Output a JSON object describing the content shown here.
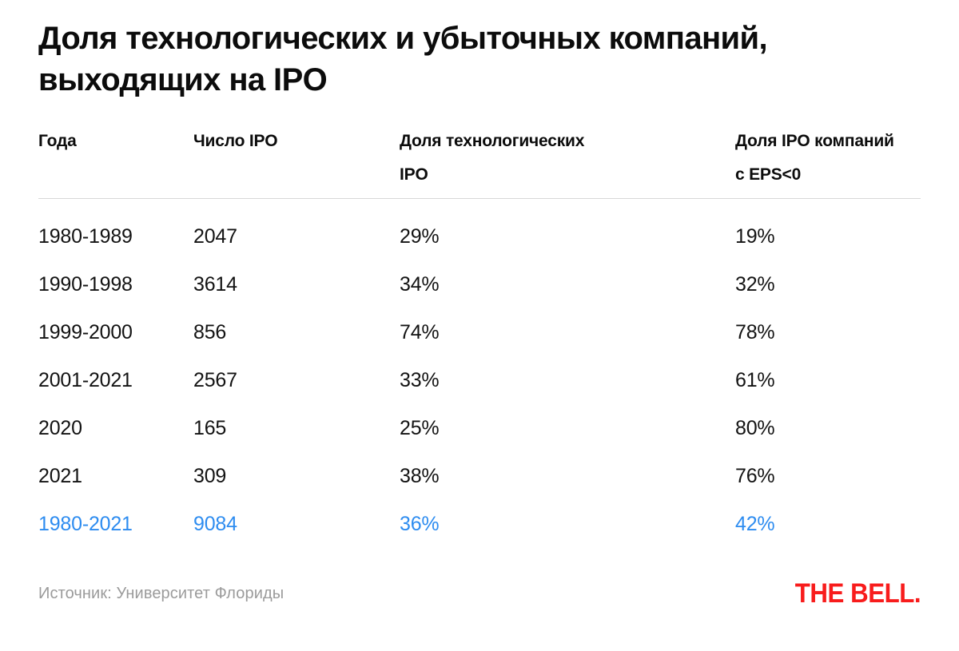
{
  "page": {
    "title": "Доля технологических и убыточных компаний,\nвыходящих на IPO",
    "source": "Источник: Университет Флориды",
    "logo_text": "THE BELL."
  },
  "chart_data": {
    "type": "table",
    "title": "Доля технологических и убыточных компаний, выходящих на IPO",
    "columns": [
      "Года",
      "Число IPO",
      "Доля технологических\nIPO",
      "Доля IPO компаний\nс EPS<0"
    ],
    "rows": [
      {
        "cells": [
          "1980-1989",
          "2047",
          "29%",
          "19%"
        ],
        "highlight": false
      },
      {
        "cells": [
          "1990-1998",
          "3614",
          "34%",
          "32%"
        ],
        "highlight": false
      },
      {
        "cells": [
          "1999-2000",
          "856",
          "74%",
          "78%"
        ],
        "highlight": false
      },
      {
        "cells": [
          "2001-2021",
          "2567",
          "33%",
          "61%"
        ],
        "highlight": false
      },
      {
        "cells": [
          "2020",
          "165",
          "25%",
          "80%"
        ],
        "highlight": false
      },
      {
        "cells": [
          "2021",
          "309",
          "38%",
          "76%"
        ],
        "highlight": false
      },
      {
        "cells": [
          "1980-2021",
          "9084",
          "36%",
          "42%"
        ],
        "highlight": true
      }
    ],
    "source": "Источник: Университет Флориды",
    "legend": "none",
    "grid": "off"
  },
  "colors": {
    "text": "#131313",
    "title": "#0c0c0c",
    "accent_blue": "#2d8cf0",
    "brand_red": "#f81c1c",
    "divider": "#d8d8d8",
    "muted_gray": "#9b9b9b",
    "background": "#ffffff"
  }
}
